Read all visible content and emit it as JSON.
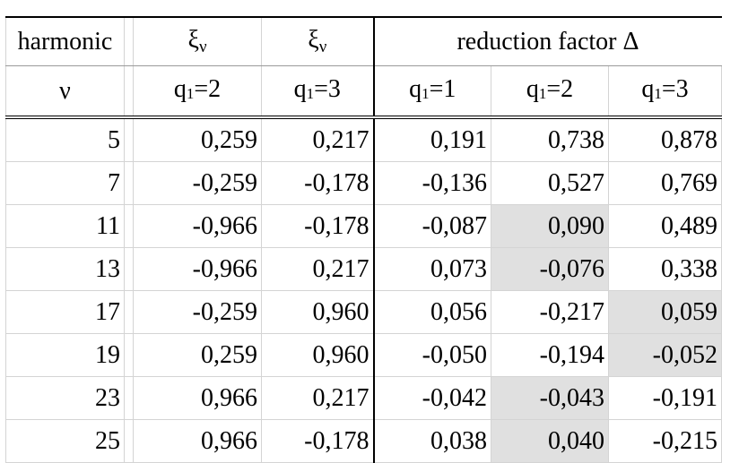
{
  "header": {
    "harmonic": "harmonic",
    "xi_1": "ξ",
    "xi_1_sub": "ν",
    "xi_2": "ξ",
    "xi_2_sub": "ν",
    "reduction": "reduction factor Δ",
    "nu": "ν",
    "q_symbol": "q",
    "q_sub": "1",
    "q_cols": [
      "=2",
      "=3",
      "=1",
      "=2",
      "=3"
    ]
  },
  "rows": [
    {
      "nu": "5",
      "xi_q2": "0,259",
      "xi_q3": "0,217",
      "d_q1": "0,191",
      "d_q2": "0,738",
      "d_q3": "0,878"
    },
    {
      "nu": "7",
      "xi_q2": "-0,259",
      "xi_q3": "-0,178",
      "d_q1": "-0,136",
      "d_q2": "0,527",
      "d_q3": "0,769"
    },
    {
      "nu": "11",
      "xi_q2": "-0,966",
      "xi_q3": "-0,178",
      "d_q1": "-0,087",
      "d_q2": "0,090",
      "d_q3": "0,489"
    },
    {
      "nu": "13",
      "xi_q2": "-0,966",
      "xi_q3": "0,217",
      "d_q1": "0,073",
      "d_q2": "-0,076",
      "d_q3": "0,338"
    },
    {
      "nu": "17",
      "xi_q2": "-0,259",
      "xi_q3": "0,960",
      "d_q1": "0,056",
      "d_q2": "-0,217",
      "d_q3": "0,059"
    },
    {
      "nu": "19",
      "xi_q2": "0,259",
      "xi_q3": "0,960",
      "d_q1": "-0,050",
      "d_q2": "-0,194",
      "d_q3": "-0,052"
    },
    {
      "nu": "23",
      "xi_q2": "0,966",
      "xi_q3": "0,217",
      "d_q1": "-0,042",
      "d_q2": "-0,043",
      "d_q3": "-0,191"
    },
    {
      "nu": "25",
      "xi_q2": "0,966",
      "xi_q3": "-0,178",
      "d_q1": "0,038",
      "d_q2": "0,040",
      "d_q3": "-0,215"
    }
  ],
  "highlight_color": "#e0e0e0",
  "highlighted_cells": [
    "2.d_q2",
    "3.d_q2",
    "4.d_q3",
    "5.d_q3",
    "6.d_q2",
    "7.d_q2"
  ]
}
